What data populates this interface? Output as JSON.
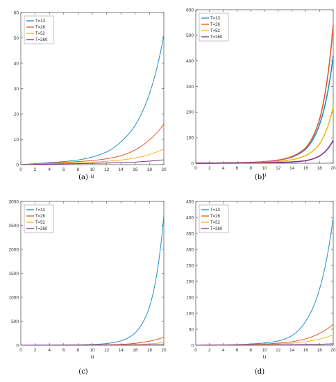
{
  "colors": {
    "T13": "#1f8fc4",
    "T26": "#e0572a",
    "T52": "#f2b71c",
    "T260": "#7b2f8e"
  },
  "legend_labels": [
    "T=13",
    "T=26",
    "T=52",
    "T=260"
  ],
  "chart_data": [
    {
      "type": "line",
      "caption": "(a)",
      "xlabel": "u",
      "ylabel": "",
      "xlim": [
        0,
        20
      ],
      "ylim": [
        0,
        60
      ],
      "xticks": [
        0,
        2,
        4,
        6,
        8,
        10,
        12,
        14,
        16,
        18,
        20
      ],
      "yticks": [
        0,
        10,
        20,
        30,
        40,
        50,
        60
      ],
      "legend": "top-left",
      "x": [
        0,
        2,
        4,
        6,
        8,
        10,
        12,
        14,
        16,
        18,
        20
      ],
      "series": [
        {
          "name": "T=13",
          "values": [
            0,
            0.4,
            0.8,
            1.2,
            1.8,
            3.0,
            5.0,
            9.0,
            15.5,
            28,
            51
          ]
        },
        {
          "name": "T=26",
          "values": [
            0,
            0.3,
            0.6,
            0.9,
            1.2,
            1.6,
            2.3,
            3.5,
            5.8,
            9.8,
            16
          ]
        },
        {
          "name": "T=52",
          "values": [
            0,
            0.2,
            0.4,
            0.6,
            0.8,
            1.0,
            1.3,
            1.8,
            2.6,
            4.0,
            6.2
          ]
        },
        {
          "name": "T=260",
          "values": [
            0,
            0.1,
            0.2,
            0.3,
            0.4,
            0.5,
            0.6,
            0.75,
            1.0,
            1.4,
            1.9
          ]
        }
      ]
    },
    {
      "type": "line",
      "caption": "(b)",
      "xlabel": "u",
      "ylabel": "",
      "xlim": [
        0,
        20
      ],
      "ylim": [
        0,
        600
      ],
      "xticks": [
        0,
        2,
        4,
        6,
        8,
        10,
        12,
        14,
        16,
        18,
        20
      ],
      "yticks": [
        0,
        100,
        200,
        300,
        400,
        500,
        600
      ],
      "legend": "top-left",
      "x": [
        0,
        2,
        4,
        6,
        8,
        10,
        12,
        14,
        16,
        18,
        20
      ],
      "series": [
        {
          "name": "T=13",
          "values": [
            0,
            0.5,
            1,
            2,
            3,
            6,
            12,
            24,
            55,
            150,
            420
          ]
        },
        {
          "name": "T=26",
          "values": [
            0,
            0.5,
            1,
            2,
            3,
            6,
            12,
            26,
            60,
            170,
            540
          ]
        },
        {
          "name": "T=52",
          "values": [
            0,
            0.3,
            0.7,
            1.2,
            2,
            4,
            7,
            14,
            30,
            75,
            220
          ]
        },
        {
          "name": "T=260",
          "values": [
            0,
            0.2,
            0.4,
            0.6,
            1,
            1.5,
            3,
            5,
            10,
            28,
            90
          ]
        }
      ]
    },
    {
      "type": "line",
      "caption": "(c)",
      "xlabel": "u",
      "ylabel": "",
      "xlim": [
        0,
        20
      ],
      "ylim": [
        0,
        3000
      ],
      "xticks": [
        0,
        2,
        4,
        6,
        8,
        10,
        12,
        14,
        16,
        18,
        20
      ],
      "yticks": [
        0,
        500,
        1000,
        1500,
        2000,
        2500,
        3000
      ],
      "legend": "top-left",
      "x": [
        0,
        2,
        4,
        6,
        8,
        10,
        12,
        14,
        16,
        18,
        20
      ],
      "series": [
        {
          "name": "T=13",
          "values": [
            0,
            1,
            2,
            4,
            8,
            15,
            35,
            90,
            260,
            800,
            2700
          ]
        },
        {
          "name": "T=26",
          "values": [
            0,
            0.5,
            1,
            2,
            3,
            5,
            9,
            18,
            40,
            85,
            165
          ]
        },
        {
          "name": "T=52",
          "values": [
            0,
            0.3,
            0.6,
            1,
            1.5,
            2.5,
            4,
            7,
            14,
            28,
            55
          ]
        },
        {
          "name": "T=260",
          "values": [
            0,
            0.1,
            0.2,
            0.4,
            0.6,
            0.9,
            1.4,
            2.2,
            3.5,
            5.5,
            8
          ]
        }
      ]
    },
    {
      "type": "line",
      "caption": "(d)",
      "xlabel": "u",
      "ylabel": "",
      "xlim": [
        0,
        20
      ],
      "ylim": [
        0,
        450
      ],
      "xticks": [
        0,
        2,
        4,
        6,
        8,
        10,
        12,
        14,
        16,
        18,
        20
      ],
      "yticks": [
        0,
        50,
        100,
        150,
        200,
        250,
        300,
        350,
        400,
        450
      ],
      "legend": "top-left",
      "x": [
        0,
        2,
        4,
        6,
        8,
        10,
        12,
        14,
        16,
        18,
        20
      ],
      "series": [
        {
          "name": "T=13",
          "values": [
            0,
            0.5,
            1,
            2,
            4,
            7,
            13,
            30,
            75,
            175,
            400
          ]
        },
        {
          "name": "T=26",
          "values": [
            0,
            0.3,
            0.7,
            1.3,
            2.2,
            3.8,
            6.5,
            11,
            20,
            37,
            65
          ]
        },
        {
          "name": "T=52",
          "values": [
            0,
            0.2,
            0.5,
            0.9,
            1.5,
            2.5,
            4,
            6.5,
            11,
            19,
            33
          ]
        },
        {
          "name": "T=260",
          "values": [
            0,
            0.1,
            0.2,
            0.3,
            0.5,
            0.7,
            1,
            1.4,
            2,
            3,
            4.5
          ]
        }
      ]
    }
  ]
}
